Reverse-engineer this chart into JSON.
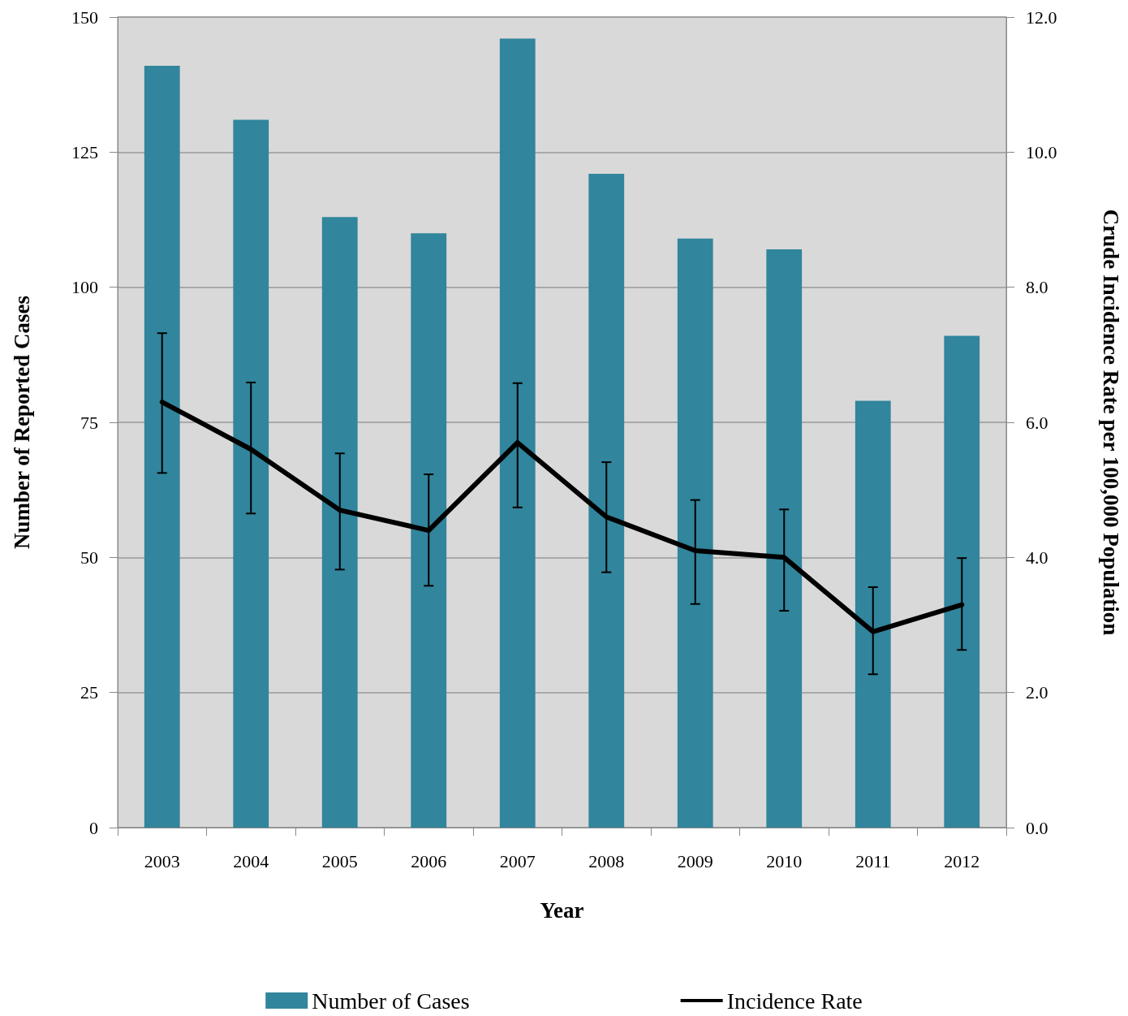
{
  "chart_data": {
    "type": "bar",
    "xlabel": "Year",
    "ylabel": "Number of Reported Cases",
    "y2label": "Crude Incidence Rate per 100,000 Population",
    "categories": [
      "2003",
      "2004",
      "2005",
      "2006",
      "2007",
      "2008",
      "2009",
      "2010",
      "2011",
      "2012"
    ],
    "series": [
      {
        "name": "Number of Cases",
        "color": "#31859c",
        "values": [
          141,
          131,
          113,
          110,
          146,
          121,
          109,
          107,
          79,
          91
        ]
      },
      {
        "name": "Incidence Rate",
        "type": "line",
        "axis": "y2",
        "color": "#000000",
        "values": [
          6.3,
          5.6,
          4.7,
          4.4,
          5.7,
          4.6,
          4.1,
          4.0,
          2.9,
          3.3
        ],
        "errors": [
          [
            5.25,
            7.32
          ],
          [
            4.65,
            6.59
          ],
          [
            3.82,
            5.54
          ],
          [
            3.58,
            5.23
          ],
          [
            4.74,
            6.58
          ],
          [
            3.78,
            5.41
          ],
          [
            3.31,
            4.85
          ],
          [
            3.21,
            4.71
          ],
          [
            2.27,
            3.56
          ],
          [
            2.63,
            3.99
          ]
        ]
      }
    ],
    "ylim": [
      0,
      150
    ],
    "yticks": [
      0,
      25,
      50,
      75,
      100,
      125,
      150
    ],
    "y2lim": [
      0,
      12
    ],
    "y2ticks": [
      {
        "value": 0,
        "label": "0.0"
      },
      {
        "value": 2,
        "label": "2.0"
      },
      {
        "value": 4,
        "label": "4.0"
      },
      {
        "value": 6,
        "label": "6.0"
      },
      {
        "value": 8,
        "label": "8.0"
      },
      {
        "value": 10,
        "label": "10.0"
      },
      {
        "value": 12,
        "label": "12.0"
      }
    ],
    "grid": "y",
    "legend": "bottom",
    "marker": "none",
    "line_style": "solid"
  }
}
